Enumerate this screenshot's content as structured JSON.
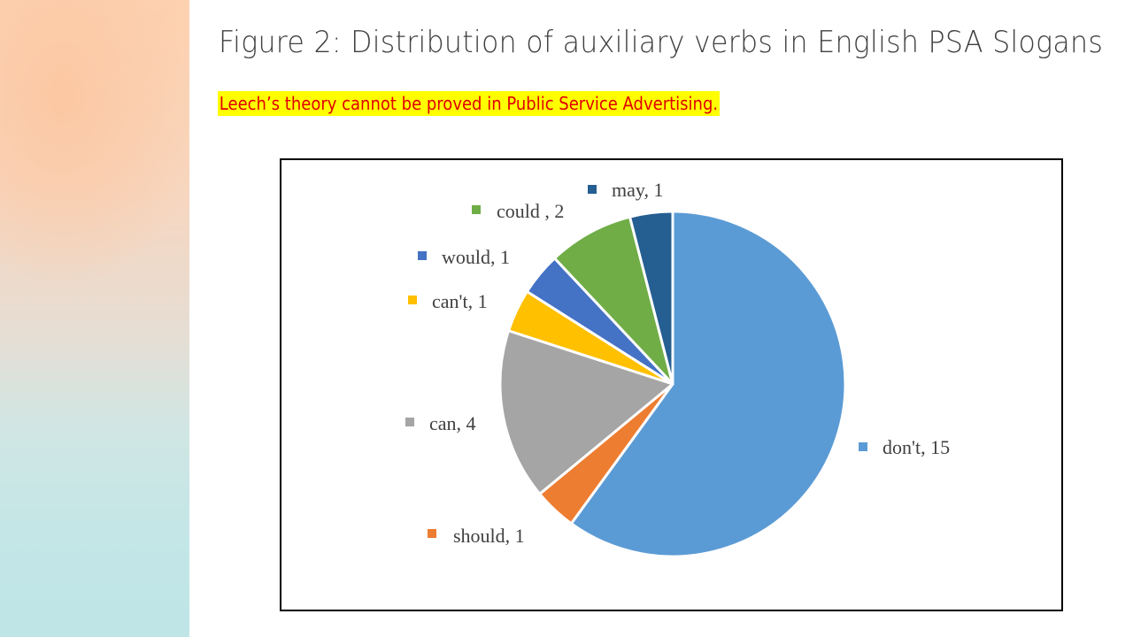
{
  "slide": {
    "title": "Figure 2: Distribution of auxiliary verbs in English PSA Slogans",
    "subtitle": "Leech’s theory cannot be proved in Public Service Advertising."
  },
  "chart_data": {
    "type": "pie",
    "title": "",
    "slices": [
      {
        "label": "don't, 15",
        "value": 15,
        "color": "#5b9bd5"
      },
      {
        "label": "should, 1",
        "value": 1,
        "color": "#ed7d31"
      },
      {
        "label": "can, 4",
        "value": 4,
        "color": "#a5a5a5"
      },
      {
        "label": "can't, 1",
        "value": 1,
        "color": "#ffc000"
      },
      {
        "label": "would, 1",
        "value": 1,
        "color": "#4472c4"
      },
      {
        "label": "could , 2",
        "value": 2,
        "color": "#70ad47"
      },
      {
        "label": "may, 1",
        "value": 1,
        "color": "#255e91"
      }
    ],
    "legend": "labels beside slices"
  }
}
